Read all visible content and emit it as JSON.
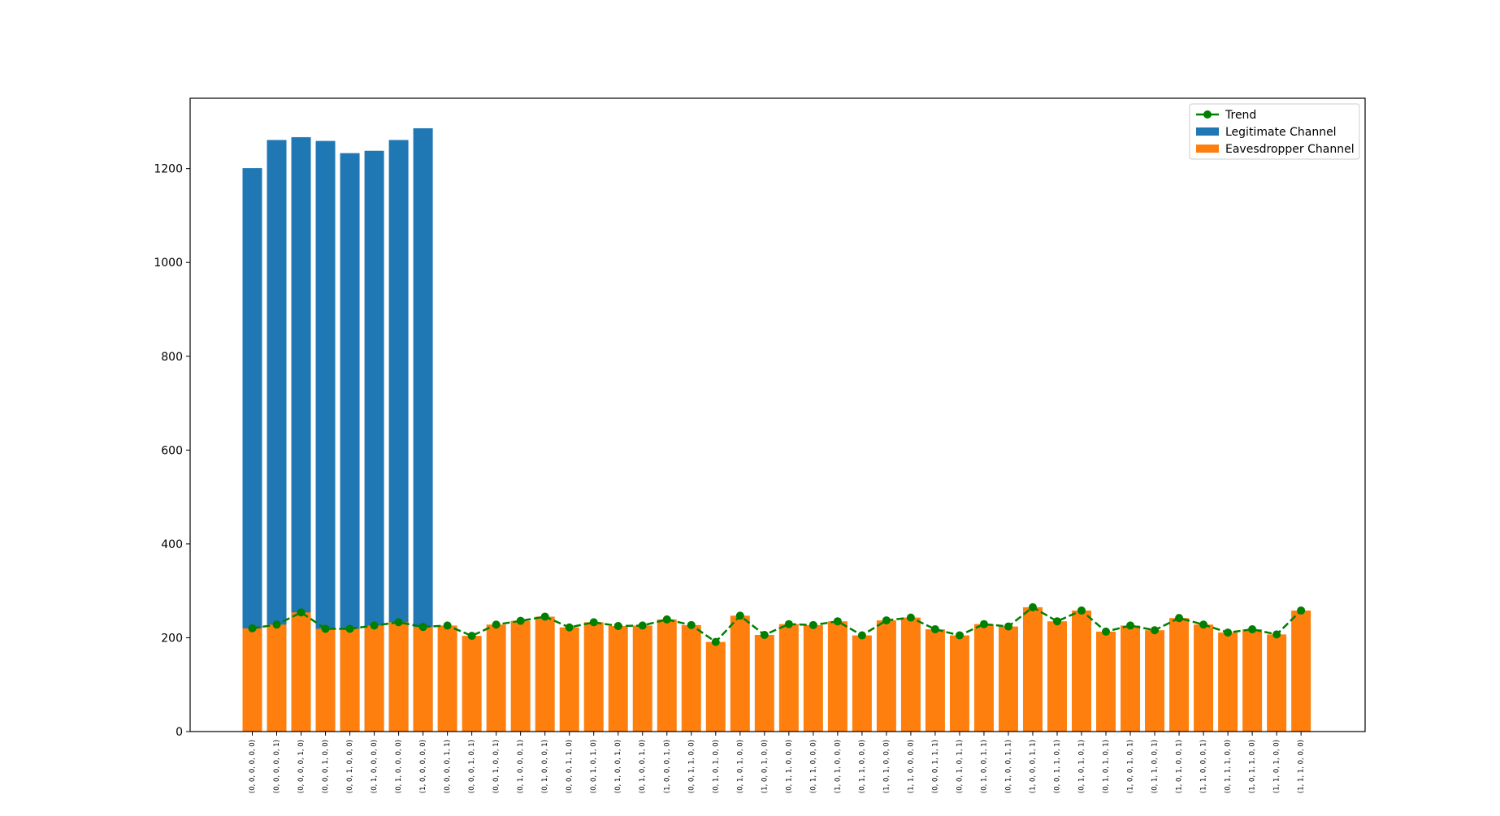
{
  "chart_data": {
    "type": "bar",
    "title": "",
    "xlabel": "",
    "ylabel": "",
    "ylim": [
      0,
      1350
    ],
    "yticks": [
      0,
      200,
      400,
      600,
      800,
      1000,
      1200
    ],
    "grid": false,
    "legend_position": "top-right",
    "categories": [
      "(0, 0, 0, 0, 0, 0)",
      "(0, 0, 0, 0, 0, 1)",
      "(0, 0, 0, 0, 1, 0)",
      "(0, 0, 0, 1, 0, 0)",
      "(0, 0, 1, 0, 0, 0)",
      "(0, 1, 0, 0, 0, 0)",
      "(0, 1, 0, 0, 0, 0)",
      "(1, 0, 0, 0, 0, 0)",
      "(0, 0, 0, 0, 1, 1)",
      "(0, 0, 0, 1, 0, 1)",
      "(0, 0, 1, 0, 0, 1)",
      "(0, 1, 0, 0, 0, 1)",
      "(0, 1, 0, 0, 0, 1)",
      "(0, 0, 0, 1, 1, 0)",
      "(0, 0, 1, 0, 1, 0)",
      "(0, 1, 0, 0, 1, 0)",
      "(0, 1, 0, 0, 1, 0)",
      "(1, 0, 0, 0, 1, 0)",
      "(0, 0, 1, 1, 0, 0)",
      "(0, 1, 0, 1, 0, 0)",
      "(0, 1, 0, 1, 0, 0)",
      "(1, 0, 0, 1, 0, 0)",
      "(0, 1, 1, 0, 0, 0)",
      "(0, 1, 1, 0, 0, 0)",
      "(1, 0, 1, 0, 0, 0)",
      "(0, 1, 1, 0, 0, 0)",
      "(1, 0, 1, 0, 0, 0)",
      "(1, 1, 0, 0, 0, 0)",
      "(0, 0, 0, 1, 1, 1)",
      "(0, 0, 1, 0, 1, 1)",
      "(0, 1, 0, 0, 1, 1)",
      "(0, 1, 0, 0, 1, 1)",
      "(1, 0, 0, 0, 1, 1)",
      "(0, 0, 1, 1, 0, 1)",
      "(0, 1, 0, 1, 0, 1)",
      "(0, 1, 0, 1, 0, 1)",
      "(1, 0, 0, 1, 0, 1)",
      "(0, 1, 1, 0, 0, 1)",
      "(1, 0, 1, 0, 0, 1)",
      "(1, 1, 0, 0, 0, 1)",
      "(0, 1, 1, 1, 0, 0)",
      "(1, 0, 1, 1, 0, 0)",
      "(1, 1, 0, 1, 0, 0)",
      "(1, 1, 1, 0, 0, 0)"
    ],
    "series": [
      {
        "name": "Legitimate Channel",
        "kind": "bar",
        "color": "#1f77b4",
        "values": [
          1201,
          1261,
          1267,
          1259,
          1233,
          1238,
          1261,
          1286,
          null,
          null,
          null,
          null,
          null,
          null,
          null,
          null,
          null,
          null,
          null,
          null,
          null,
          null,
          null,
          null,
          null,
          null,
          null,
          null,
          null,
          null,
          null,
          null,
          null,
          null,
          null,
          null,
          null,
          null,
          null,
          null,
          null,
          null,
          null,
          null
        ]
      },
      {
        "name": "Eavesdropper Channel",
        "kind": "bar",
        "color": "#ff7f0e",
        "values": [
          220,
          228,
          254,
          219,
          219,
          226,
          233,
          223,
          226,
          204,
          228,
          236,
          245,
          222,
          233,
          225,
          226,
          239,
          227,
          191,
          247,
          206,
          229,
          227,
          235,
          205,
          237,
          243,
          218,
          205,
          229,
          224,
          265,
          235,
          258,
          213,
          226,
          216,
          242,
          228,
          211,
          218,
          207,
          258
        ]
      },
      {
        "name": "Trend",
        "kind": "line",
        "color": "#008000",
        "values": [
          220,
          228,
          254,
          219,
          219,
          226,
          233,
          223,
          226,
          204,
          228,
          236,
          245,
          222,
          233,
          225,
          226,
          239,
          227,
          191,
          247,
          206,
          229,
          227,
          235,
          205,
          237,
          243,
          218,
          205,
          229,
          224,
          265,
          235,
          258,
          213,
          226,
          216,
          242,
          228,
          211,
          218,
          207,
          258
        ]
      }
    ],
    "legend": [
      "Trend",
      "Legitimate Channel",
      "Eavesdropper Channel"
    ]
  }
}
